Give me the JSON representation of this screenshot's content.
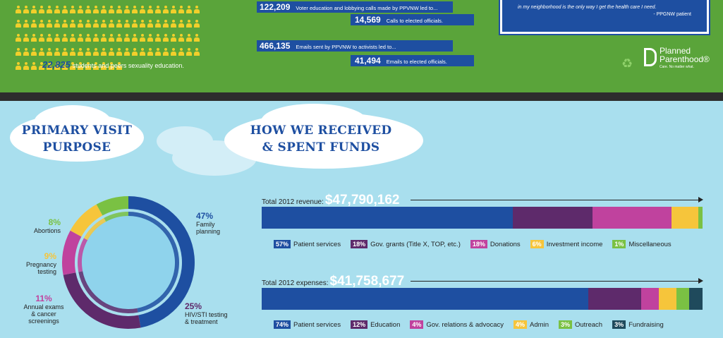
{
  "top": {
    "education_count": "22,825",
    "education_text": "students and peers sexuality education.",
    "banners": [
      {
        "num": "122,209",
        "text": "Voter education and lobbying calls made by PPVNW led to..."
      },
      {
        "num": "14,569",
        "text": "Calls to elected officials."
      },
      {
        "num": "466,135",
        "text": "Emails sent by PPVNW to activists led to..."
      },
      {
        "num": "41,494",
        "text": "Emails to elected officials."
      }
    ],
    "quote_text": "in my neighborhood is the only way I get the health care I need.",
    "quote_author": "- PPGNW patient",
    "logo_line1": "Planned",
    "logo_line2": "Parenthood®",
    "logo_tagline": "Care. No matter what.",
    "colors": {
      "green": "#5aa43a",
      "people": "#f1cf2b",
      "blue": "#1e4fa1"
    }
  },
  "chart_data": [
    {
      "type": "pie",
      "title": "PRIMARY VISIT PURPOSE",
      "title_lines": [
        "PRIMARY VISIT",
        "PURPOSE"
      ],
      "slices": [
        {
          "label": "Family planning",
          "label_lines": [
            "Family",
            "planning"
          ],
          "value": 47,
          "pct": "47%",
          "color": "#1e4fa1"
        },
        {
          "label": "HIV/STI testing & treatment",
          "label_lines": [
            "HIV/STI testing",
            "& treatment"
          ],
          "value": 25,
          "pct": "25%",
          "color": "#5e2a6b"
        },
        {
          "label": "Annual exams & cancer screenings",
          "label_lines": [
            "Annual exams",
            "& cancer",
            "screenings"
          ],
          "value": 11,
          "pct": "11%",
          "color": "#c0429e"
        },
        {
          "label": "Pregnancy testing",
          "label_lines": [
            "Pregnancy",
            "testing"
          ],
          "value": 9,
          "pct": "9%",
          "color": "#f6c53b"
        },
        {
          "label": "Abortions",
          "label_lines": [
            "Abortions"
          ],
          "value": 8,
          "pct": "8%",
          "color": "#7ac143"
        }
      ]
    },
    {
      "type": "bar",
      "subtype": "stacked-horizontal",
      "title": "HOW WE RECEIVED & SPENT FUNDS",
      "title_lines": [
        "HOW WE RECEIVED",
        "& SPENT FUNDS"
      ],
      "bars": [
        {
          "label": "Total 2012 revenue:",
          "total": "$47,790,162",
          "segments": [
            {
              "name": "Patient services",
              "value": 57,
              "pct": "57%",
              "color": "#1e4fa1"
            },
            {
              "name": "Gov. grants (Title X, TOP, etc.)",
              "value": 18,
              "pct": "18%",
              "color": "#5e2a6b"
            },
            {
              "name": "Donations",
              "value": 18,
              "pct": "18%",
              "color": "#c0429e"
            },
            {
              "name": "Investment income",
              "value": 6,
              "pct": "6%",
              "color": "#f6c53b"
            },
            {
              "name": "Miscellaneous",
              "value": 1,
              "pct": "1%",
              "color": "#7ac143"
            }
          ]
        },
        {
          "label": "Total 2012 expenses:",
          "total": "$41,758,677",
          "segments": [
            {
              "name": "Patient services",
              "value": 74,
              "pct": "74%",
              "color": "#1e4fa1"
            },
            {
              "name": "Education",
              "value": 12,
              "pct": "12%",
              "color": "#5e2a6b"
            },
            {
              "name": "Gov. relations & advocacy",
              "value": 4,
              "pct": "4%",
              "color": "#c0429e"
            },
            {
              "name": "Admin",
              "value": 4,
              "pct": "4%",
              "color": "#f6c53b"
            },
            {
              "name": "Outreach",
              "value": 3,
              "pct": "3%",
              "color": "#7ac143"
            },
            {
              "name": "Fundraising",
              "value": 3,
              "pct": "3%",
              "color": "#1f4a5c"
            }
          ]
        }
      ]
    }
  ]
}
